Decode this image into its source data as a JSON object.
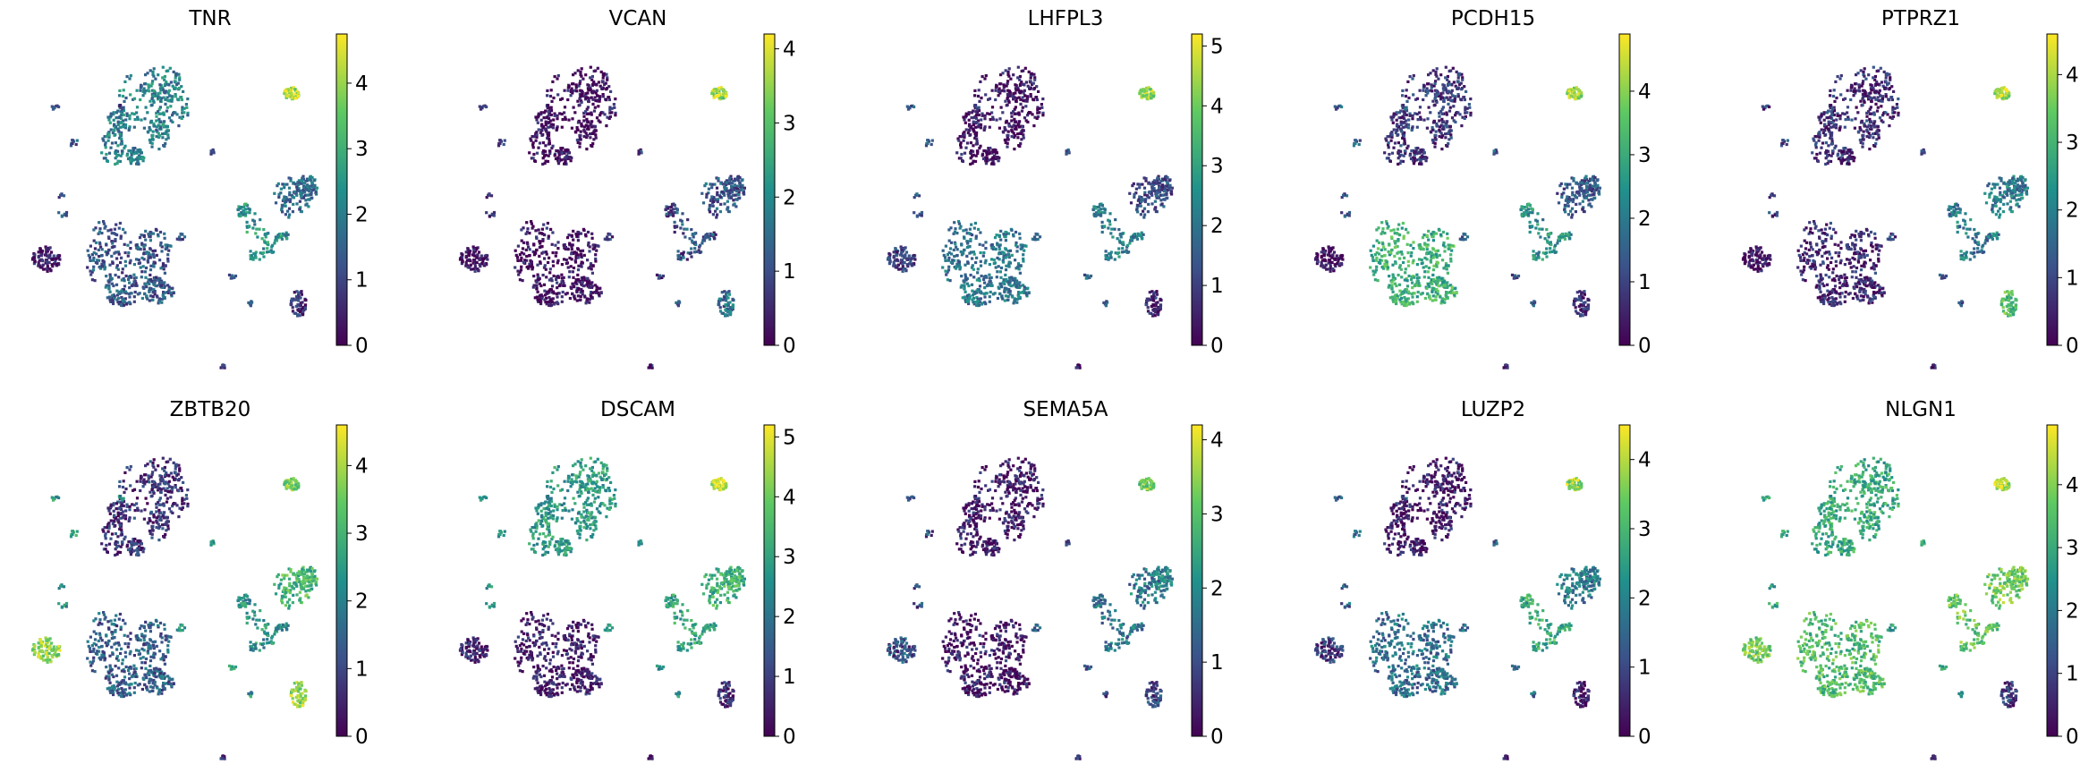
{
  "chart_data": {
    "type": "scatter",
    "embedding": "umap",
    "colormap": "viridis",
    "colormap_stops": [
      "#440154",
      "#3b528b",
      "#21918c",
      "#5ec962",
      "#fde725"
    ],
    "background_color": "#ffffff",
    "panels": [
      {
        "gene": "TNR",
        "cmin": 0,
        "cmax": 4.75,
        "ticks": [
          "0",
          "1",
          "2",
          "3",
          "4"
        ],
        "tick_values": [
          0,
          1,
          2,
          3,
          4
        ],
        "cluster_levels": {
          "ol_upper": 2.0,
          "astro_lower": 1.3,
          "astro_right": 1.6,
          "vasc_small": 0.6,
          "blob_left": 0.3,
          "opc_tr": 4.1,
          "bridge": 2.4,
          "peri": 0.9,
          "dots": 1.2
        }
      },
      {
        "gene": "VCAN",
        "cmin": 0,
        "cmax": 4.2,
        "ticks": [
          "0",
          "1",
          "2",
          "3",
          "4"
        ],
        "tick_values": [
          0,
          1,
          2,
          3,
          4
        ],
        "cluster_levels": {
          "ol_upper": 0.1,
          "astro_lower": 0.1,
          "astro_right": 1.1,
          "vasc_small": 1.5,
          "blob_left": 0.1,
          "opc_tr": 3.6,
          "bridge": 1.0,
          "peri": 0.3,
          "dots": 0.7
        }
      },
      {
        "gene": "LHFPL3",
        "cmin": 0,
        "cmax": 5.2,
        "ticks": [
          "0",
          "1",
          "2",
          "3",
          "4",
          "5"
        ],
        "tick_values": [
          0,
          1,
          2,
          3,
          4,
          5
        ],
        "cluster_levels": {
          "ol_upper": 0.3,
          "astro_lower": 2.0,
          "astro_right": 1.2,
          "vasc_small": 0.5,
          "blob_left": 1.0,
          "opc_tr": 4.4,
          "bridge": 2.2,
          "peri": 0.4,
          "dots": 1.6
        }
      },
      {
        "gene": "PCDH15",
        "cmin": 0,
        "cmax": 4.9,
        "ticks": [
          "0",
          "1",
          "2",
          "3",
          "4"
        ],
        "tick_values": [
          0,
          1,
          2,
          3,
          4
        ],
        "cluster_levels": {
          "ol_upper": 0.8,
          "astro_lower": 3.1,
          "astro_right": 1.4,
          "vasc_small": 0.6,
          "blob_left": 0.2,
          "opc_tr": 4.2,
          "bridge": 2.5,
          "peri": 0.4,
          "dots": 1.4
        }
      },
      {
        "gene": "PTPRZ1",
        "cmin": 0,
        "cmax": 4.6,
        "ticks": [
          "0",
          "1",
          "2",
          "3",
          "4"
        ],
        "tick_values": [
          0,
          1,
          2,
          3,
          4
        ],
        "cluster_levels": {
          "ol_upper": 0.6,
          "astro_lower": 0.5,
          "astro_right": 1.9,
          "vasc_small": 3.2,
          "blob_left": 0.1,
          "opc_tr": 4.0,
          "bridge": 1.9,
          "peri": 0.4,
          "dots": 0.9
        }
      },
      {
        "gene": "ZBTB20",
        "cmin": 0,
        "cmax": 4.6,
        "ticks": [
          "0",
          "1",
          "2",
          "3",
          "4"
        ],
        "tick_values": [
          0,
          1,
          2,
          3,
          4
        ],
        "cluster_levels": {
          "ol_upper": 0.7,
          "astro_lower": 1.4,
          "astro_right": 3.0,
          "vasc_small": 3.9,
          "blob_left": 3.8,
          "opc_tr": 3.7,
          "bridge": 2.3,
          "peri": 0.6,
          "dots": 2.4
        }
      },
      {
        "gene": "DSCAM",
        "cmin": 0,
        "cmax": 5.2,
        "ticks": [
          "0",
          "1",
          "2",
          "3",
          "4",
          "5"
        ],
        "tick_values": [
          0,
          1,
          2,
          3,
          4,
          5
        ],
        "cluster_levels": {
          "ol_upper": 2.8,
          "astro_lower": 0.4,
          "astro_right": 3.3,
          "vasc_small": 0.6,
          "blob_left": 0.5,
          "opc_tr": 4.7,
          "bridge": 3.0,
          "peri": 0.6,
          "dots": 2.6
        }
      },
      {
        "gene": "SEMA5A",
        "cmin": 0,
        "cmax": 4.2,
        "ticks": [
          "0",
          "1",
          "2",
          "3",
          "4"
        ],
        "tick_values": [
          0,
          1,
          2,
          3,
          4
        ],
        "cluster_levels": {
          "ol_upper": 0.2,
          "astro_lower": 0.2,
          "astro_right": 1.7,
          "vasc_small": 0.9,
          "blob_left": 1.0,
          "opc_tr": 3.4,
          "bridge": 1.6,
          "peri": 0.3,
          "dots": 1.0
        }
      },
      {
        "gene": "LUZP2",
        "cmin": 0,
        "cmax": 4.5,
        "ticks": [
          "0",
          "1",
          "2",
          "3",
          "4"
        ],
        "tick_values": [
          0,
          1,
          2,
          3,
          4
        ],
        "cluster_levels": {
          "ol_upper": 0.3,
          "astro_lower": 1.6,
          "astro_right": 1.9,
          "vasc_small": 0.4,
          "blob_left": 0.8,
          "opc_tr": 3.8,
          "bridge": 2.7,
          "peri": 0.4,
          "dots": 1.5
        }
      },
      {
        "gene": "NLGN1",
        "cmin": 0,
        "cmax": 4.95,
        "ticks": [
          "0",
          "1",
          "2",
          "3",
          "4"
        ],
        "tick_values": [
          0,
          1,
          2,
          3,
          4
        ],
        "cluster_levels": {
          "ol_upper": 3.0,
          "astro_lower": 3.4,
          "astro_right": 3.8,
          "vasc_small": 0.8,
          "blob_left": 3.8,
          "opc_tr": 4.5,
          "bridge": 3.6,
          "peri": 1.0,
          "dots": 2.8
        }
      }
    ]
  }
}
